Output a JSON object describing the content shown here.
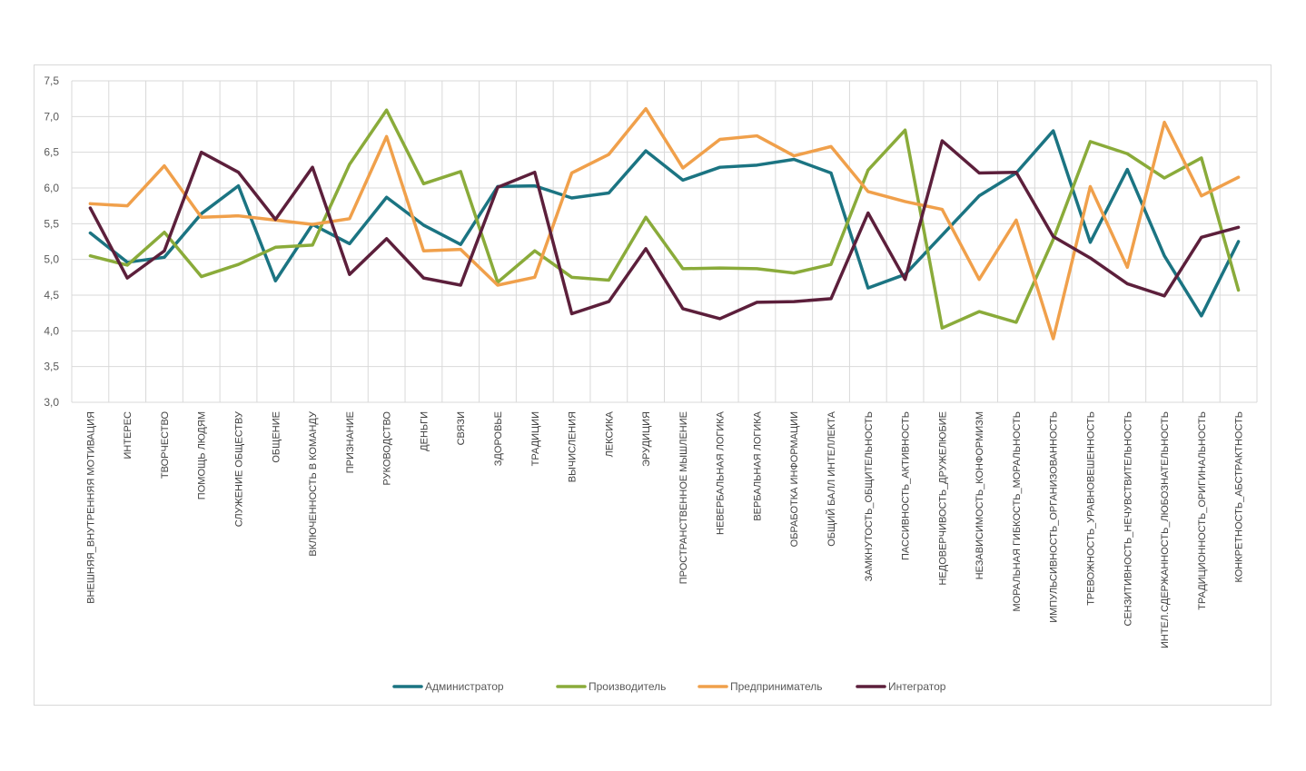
{
  "chart_data": {
    "type": "line",
    "title": "",
    "xlabel": "",
    "ylabel": "",
    "ylim": [
      3.0,
      7.5
    ],
    "yticks": [
      "3,0",
      "3,5",
      "4,0",
      "4,5",
      "5,0",
      "5,5",
      "6,0",
      "6,5",
      "7,0",
      "7,5"
    ],
    "ytick_values": [
      3.0,
      3.5,
      4.0,
      4.5,
      5.0,
      5.5,
      6.0,
      6.5,
      7.0,
      7.5
    ],
    "grid": true,
    "legend_position": "bottom",
    "categories": [
      "ВНЕШНЯЯ_ВНУТРЕННЯЯ МОТИВАЦИЯ",
      "ИНТЕРЕС",
      "ТВОРЧЕСТВО",
      "ПОМОЩЬ ЛЮДЯМ",
      "СЛУЖЕНИЕ ОБЩЕСТВУ",
      "ОБЩЕНИЕ",
      "ВКЛЮЧЕННОСТЬ В КОМАНДУ",
      "ПРИЗНАНИЕ",
      "РУКОВОДСТВО",
      "ДЕНЬГИ",
      "СВЯЗИ",
      "ЗДОРОВЬЕ",
      "ТРАДИЦИИ",
      "ВЫЧИСЛЕНИЯ",
      "ЛЕКСИКА",
      "ЭРУДИЦИЯ",
      "ПРОСТРАНСТВЕННОЕ МЫШЛЕНИЕ",
      "НЕВЕРБАЛЬНАЯ ЛОГИКА",
      "ВЕРБАЛЬНАЯ ЛОГИКА",
      "ОБРАБОТКА ИНФОРМАЦИИ",
      "ОБЩИЙ БАЛЛ ИНТЕЛЛЕКТА",
      "ЗАМКНУТОСТЬ_ОБЩИТЕЛЬНОСТЬ",
      "ПАССИВНОСТЬ_АКТИВНОСТЬ",
      "НЕДОВЕРЧИВОСТЬ_ДРУЖЕЛЮБИЕ",
      "НЕЗАВИСИМОСТЬ_КОНФОРМИЗМ",
      "МОРАЛЬНАЯ ГИБКОСТЬ_МОРАЛЬНОСТЬ",
      "ИМПУЛЬСИВНОСТЬ_ОРГАНИЗОВАННОСТЬ",
      "ТРЕВОЖНОСТЬ_УРАВНОВЕШЕННОСТЬ",
      "СЕНЗИТИВНОСТЬ_НЕЧУВСТВИТЕЛЬНОСТЬ",
      "ИНТЕЛ.СДЕРЖАННОСТЬ_ЛЮБОЗНАТЕЛЬНОСТЬ",
      "ТРАДИЦИОННОСТЬ_ОРИГИНАЛЬНОСТЬ",
      "КОНКРЕТНОСТЬ_АБСТРАКТНОСТЬ"
    ],
    "series": [
      {
        "name": "Администратор",
        "color": "#1b7482",
        "values": [
          5.37,
          4.96,
          5.03,
          5.64,
          6.03,
          4.7,
          5.49,
          5.22,
          5.87,
          5.48,
          5.21,
          6.02,
          6.03,
          5.86,
          5.93,
          6.52,
          6.11,
          6.29,
          6.32,
          6.4,
          6.21,
          4.6,
          4.79,
          5.34,
          5.89,
          6.21,
          6.8,
          5.24,
          6.26,
          5.05,
          4.21,
          5.25
        ]
      },
      {
        "name": "Производитель",
        "color": "#8aab3a",
        "values": [
          5.05,
          4.92,
          5.38,
          4.76,
          4.93,
          5.17,
          5.2,
          6.33,
          7.09,
          6.06,
          6.23,
          4.68,
          5.12,
          4.75,
          4.71,
          5.59,
          4.87,
          4.88,
          4.87,
          4.81,
          4.93,
          6.25,
          6.81,
          4.04,
          4.27,
          4.12,
          5.28,
          6.65,
          6.48,
          6.14,
          6.42,
          4.57
        ]
      },
      {
        "name": "Предприниматель",
        "color": "#f0a04b",
        "values": [
          5.78,
          5.75,
          6.31,
          5.59,
          5.61,
          5.55,
          5.49,
          5.57,
          6.72,
          5.12,
          5.14,
          4.64,
          4.75,
          6.21,
          6.47,
          7.11,
          6.28,
          6.68,
          6.73,
          6.45,
          6.58,
          5.95,
          5.81,
          5.7,
          4.72,
          5.55,
          3.89,
          6.02,
          4.89,
          6.92,
          5.89,
          6.15
        ]
      },
      {
        "name": "Интегратор",
        "color": "#5c1f3b",
        "values": [
          5.72,
          4.74,
          5.12,
          6.5,
          6.22,
          5.56,
          6.29,
          4.79,
          5.29,
          4.74,
          4.64,
          6.01,
          6.22,
          4.24,
          4.41,
          5.15,
          4.31,
          4.17,
          4.4,
          4.41,
          4.45,
          5.65,
          4.72,
          6.66,
          6.21,
          6.22,
          5.32,
          5.02,
          4.66,
          4.49,
          5.31,
          5.45
        ]
      }
    ]
  }
}
